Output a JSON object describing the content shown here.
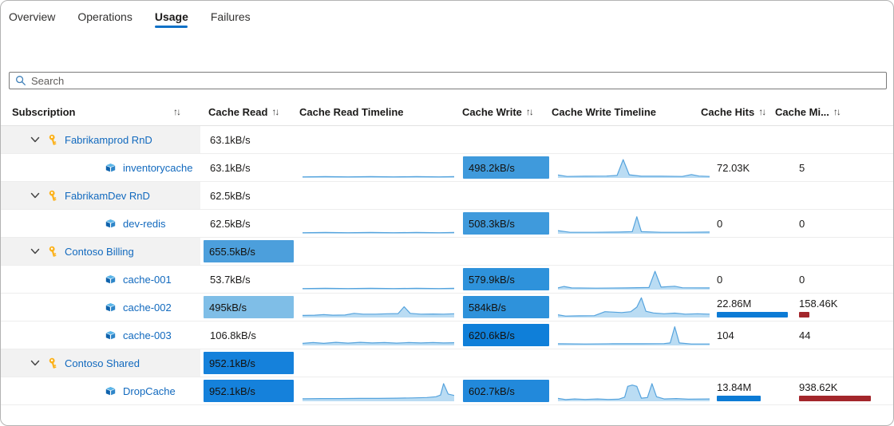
{
  "tabs": [
    {
      "label": "Overview",
      "active": false
    },
    {
      "label": "Operations",
      "active": false
    },
    {
      "label": "Usage",
      "active": true
    },
    {
      "label": "Failures",
      "active": false
    }
  ],
  "search": {
    "placeholder": "Search"
  },
  "icons": {
    "sort_glyph": "↑↓",
    "group_expander": "chevron-down",
    "subscription": "key",
    "cache": "azure-cache",
    "search": "magnifier"
  },
  "colors": {
    "accent": "#1071c7",
    "link": "#1169be",
    "group_bg": "#f2f2f2",
    "hits_bar": "#0c7bd5",
    "misses_bar": "#a3262b",
    "spark_line": "#55a3dd",
    "spark_fill": "#a9d3f0"
  },
  "table": {
    "columns": [
      {
        "label": "Subscription",
        "sort": true
      },
      {
        "label": "Cache Read",
        "sort": true
      },
      {
        "label": "Cache Read Timeline",
        "sort": false
      },
      {
        "label": "Cache Write",
        "sort": true
      },
      {
        "label": "Cache Write Timeline",
        "sort": false
      },
      {
        "label": "Cache Hits",
        "sort": true
      },
      {
        "label": "Cache Mi...",
        "sort": true
      }
    ],
    "rows": [
      {
        "type": "group",
        "name": "Fabrikamprod RnD",
        "read": "63.1kB/s",
        "read_bar": null
      },
      {
        "type": "cache",
        "name": "inventorycache",
        "read": "63.1kB/s",
        "read_bar": null,
        "read_spark": [
          [
            0,
            0.05
          ],
          [
            15,
            0.06
          ],
          [
            30,
            0.05
          ],
          [
            45,
            0.06
          ],
          [
            60,
            0.05
          ],
          [
            75,
            0.06
          ],
          [
            90,
            0.05
          ],
          [
            100,
            0.06
          ]
        ],
        "write": "498.2kB/s",
        "write_bar": "#3f9adc",
        "write_spark": [
          [
            0,
            0.14
          ],
          [
            6,
            0.07
          ],
          [
            18,
            0.08
          ],
          [
            32,
            0.09
          ],
          [
            39,
            0.12
          ],
          [
            43,
            0.88
          ],
          [
            47,
            0.15
          ],
          [
            55,
            0.08
          ],
          [
            68,
            0.08
          ],
          [
            82,
            0.07
          ],
          [
            88,
            0.16
          ],
          [
            93,
            0.09
          ],
          [
            100,
            0.07
          ]
        ],
        "hits": "72.03K",
        "hits_bar": null,
        "misses": "5",
        "misses_bar": null
      },
      {
        "type": "group",
        "name": "FabrikamDev RnD",
        "read": "62.5kB/s",
        "read_bar": null
      },
      {
        "type": "cache",
        "name": "dev-redis",
        "read": "62.5kB/s",
        "read_bar": null,
        "read_spark": [
          [
            0,
            0.05
          ],
          [
            15,
            0.06
          ],
          [
            30,
            0.05
          ],
          [
            45,
            0.06
          ],
          [
            60,
            0.05
          ],
          [
            75,
            0.06
          ],
          [
            90,
            0.05
          ],
          [
            100,
            0.06
          ]
        ],
        "write": "508.3kB/s",
        "write_bar": "#3f9adc",
        "write_spark": [
          [
            0,
            0.15
          ],
          [
            8,
            0.07
          ],
          [
            24,
            0.07
          ],
          [
            40,
            0.08
          ],
          [
            49,
            0.1
          ],
          [
            52,
            0.82
          ],
          [
            55,
            0.1
          ],
          [
            68,
            0.07
          ],
          [
            84,
            0.07
          ],
          [
            100,
            0.08
          ]
        ],
        "hits": "0",
        "hits_bar": null,
        "misses": "0",
        "misses_bar": null
      },
      {
        "type": "group",
        "name": "Contoso Billing",
        "read": "655.5kB/s",
        "read_bar": "#4c9fdc"
      },
      {
        "type": "cache",
        "name": "cache-001",
        "read": "53.7kB/s",
        "read_bar": null,
        "read_spark": [
          [
            0,
            0.05
          ],
          [
            15,
            0.06
          ],
          [
            30,
            0.05
          ],
          [
            45,
            0.06
          ],
          [
            60,
            0.05
          ],
          [
            75,
            0.06
          ],
          [
            90,
            0.05
          ],
          [
            100,
            0.06
          ]
        ],
        "write": "579.9kB/s",
        "write_bar": "#2e92db",
        "write_spark": [
          [
            0,
            0.08
          ],
          [
            4,
            0.15
          ],
          [
            9,
            0.08
          ],
          [
            25,
            0.07
          ],
          [
            45,
            0.08
          ],
          [
            60,
            0.1
          ],
          [
            64,
            0.88
          ],
          [
            68,
            0.12
          ],
          [
            77,
            0.16
          ],
          [
            82,
            0.09
          ],
          [
            100,
            0.08
          ]
        ],
        "hits": "0",
        "hits_bar": null,
        "misses": "0",
        "misses_bar": null
      },
      {
        "type": "cache",
        "name": "cache-002",
        "read": "495kB/s",
        "read_bar": "#7fbee7",
        "read_spark": [
          [
            0,
            0.1
          ],
          [
            8,
            0.11
          ],
          [
            14,
            0.14
          ],
          [
            20,
            0.11
          ],
          [
            28,
            0.12
          ],
          [
            34,
            0.2
          ],
          [
            40,
            0.16
          ],
          [
            48,
            0.16
          ],
          [
            56,
            0.18
          ],
          [
            63,
            0.19
          ],
          [
            67,
            0.52
          ],
          [
            71,
            0.2
          ],
          [
            78,
            0.16
          ],
          [
            86,
            0.17
          ],
          [
            93,
            0.16
          ],
          [
            100,
            0.18
          ]
        ],
        "write": "584kB/s",
        "write_bar": "#2e92db",
        "write_spark": [
          [
            0,
            0.13
          ],
          [
            5,
            0.07
          ],
          [
            14,
            0.08
          ],
          [
            24,
            0.09
          ],
          [
            31,
            0.28
          ],
          [
            36,
            0.26
          ],
          [
            42,
            0.24
          ],
          [
            48,
            0.28
          ],
          [
            52,
            0.5
          ],
          [
            55,
            0.95
          ],
          [
            58,
            0.3
          ],
          [
            63,
            0.22
          ],
          [
            70,
            0.18
          ],
          [
            77,
            0.21
          ],
          [
            84,
            0.16
          ],
          [
            92,
            0.18
          ],
          [
            100,
            0.16
          ]
        ],
        "hits": "22.86M",
        "hits_bar": 97,
        "misses": "158.46K",
        "misses_bar": 14
      },
      {
        "type": "cache",
        "name": "cache-003",
        "read": "106.8kB/s",
        "read_bar": null,
        "read_spark": [
          [
            0,
            0.1
          ],
          [
            7,
            0.14
          ],
          [
            14,
            0.1
          ],
          [
            22,
            0.15
          ],
          [
            30,
            0.11
          ],
          [
            38,
            0.15
          ],
          [
            46,
            0.12
          ],
          [
            54,
            0.14
          ],
          [
            62,
            0.11
          ],
          [
            70,
            0.14
          ],
          [
            78,
            0.12
          ],
          [
            86,
            0.14
          ],
          [
            93,
            0.12
          ],
          [
            100,
            0.13
          ]
        ],
        "write": "620.6kB/s",
        "write_bar": "#0f7fd9",
        "write_spark": [
          [
            0,
            0.08
          ],
          [
            18,
            0.07
          ],
          [
            36,
            0.08
          ],
          [
            55,
            0.08
          ],
          [
            70,
            0.09
          ],
          [
            74,
            0.12
          ],
          [
            77,
            0.9
          ],
          [
            80,
            0.12
          ],
          [
            88,
            0.07
          ],
          [
            100,
            0.07
          ]
        ],
        "hits": "104",
        "hits_bar": null,
        "misses": "44",
        "misses_bar": null
      },
      {
        "type": "group",
        "name": "Contoso Shared",
        "read": "952.1kB/s",
        "read_bar": "#1581db"
      },
      {
        "type": "cache",
        "name": "DropCache",
        "read": "952.1kB/s",
        "read_bar": "#1581db",
        "read_spark": [
          [
            0,
            0.12
          ],
          [
            12,
            0.13
          ],
          [
            25,
            0.13
          ],
          [
            38,
            0.14
          ],
          [
            50,
            0.14
          ],
          [
            62,
            0.15
          ],
          [
            72,
            0.16
          ],
          [
            82,
            0.18
          ],
          [
            88,
            0.22
          ],
          [
            91,
            0.3
          ],
          [
            93,
            0.85
          ],
          [
            96,
            0.35
          ],
          [
            100,
            0.28
          ]
        ],
        "write": "602.7kB/s",
        "write_bar": "#2289db",
        "write_spark": [
          [
            0,
            0.14
          ],
          [
            5,
            0.08
          ],
          [
            11,
            0.11
          ],
          [
            18,
            0.09
          ],
          [
            26,
            0.11
          ],
          [
            33,
            0.09
          ],
          [
            40,
            0.1
          ],
          [
            44,
            0.2
          ],
          [
            46,
            0.72
          ],
          [
            49,
            0.78
          ],
          [
            52,
            0.72
          ],
          [
            55,
            0.15
          ],
          [
            59,
            0.18
          ],
          [
            62,
            0.85
          ],
          [
            65,
            0.22
          ],
          [
            70,
            0.11
          ],
          [
            78,
            0.13
          ],
          [
            86,
            0.1
          ],
          [
            100,
            0.11
          ]
        ],
        "hits": "13.84M",
        "hits_bar": 60,
        "misses": "938.62K",
        "misses_bar": 98
      }
    ]
  }
}
